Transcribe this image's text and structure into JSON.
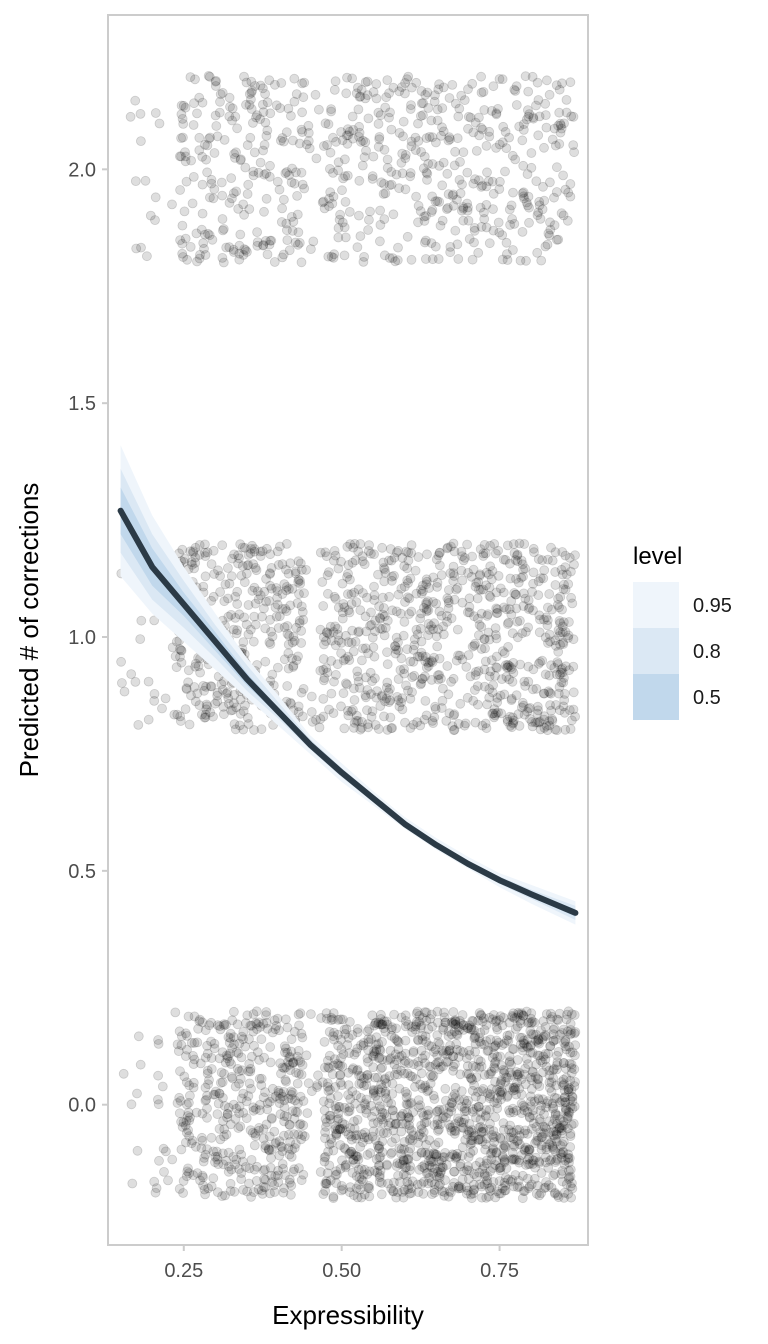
{
  "chart_data": {
    "type": "line",
    "title": "",
    "xlabel": "Expressibility",
    "ylabel": "Predicted # of corrections",
    "xlim": [
      0.13,
      0.89
    ],
    "ylim": [
      -0.3,
      2.33
    ],
    "x_ticks": [
      0.25,
      0.5,
      0.75
    ],
    "x_tick_labels": [
      "0.25",
      "0.50",
      "0.75"
    ],
    "y_ticks": [
      0.0,
      0.5,
      1.0,
      1.5,
      2.0
    ],
    "y_tick_labels": [
      "0.0",
      "0.5",
      "1.0",
      "1.5",
      "2.0"
    ],
    "grid": false,
    "legend": {
      "title": "level",
      "position": "right",
      "entries": [
        {
          "label": "0.95",
          "color": "#eff5fb"
        },
        {
          "label": "0.8",
          "color": "#dbe8f4"
        },
        {
          "label": "0.5",
          "color": "#c1d8ec"
        }
      ]
    },
    "fit_line": {
      "color": "#2b3a46",
      "x": [
        0.15,
        0.2,
        0.25,
        0.3,
        0.35,
        0.4,
        0.45,
        0.5,
        0.55,
        0.6,
        0.65,
        0.7,
        0.75,
        0.8,
        0.87
      ],
      "y": [
        1.27,
        1.15,
        1.07,
        0.99,
        0.91,
        0.84,
        0.77,
        0.71,
        0.655,
        0.6,
        0.555,
        0.515,
        0.48,
        0.45,
        0.41
      ]
    },
    "intervals": [
      {
        "level": "0.95",
        "color": "#eff5fb",
        "lower": [
          1.13,
          1.05,
          0.99,
          0.93,
          0.87,
          0.81,
          0.75,
          0.69,
          0.64,
          0.59,
          0.545,
          0.505,
          0.465,
          0.43,
          0.385
        ],
        "upper": [
          1.41,
          1.26,
          1.15,
          1.05,
          0.955,
          0.875,
          0.79,
          0.73,
          0.67,
          0.615,
          0.57,
          0.53,
          0.495,
          0.47,
          0.435
        ]
      },
      {
        "level": "0.8",
        "color": "#dbe8f4",
        "lower": [
          1.18,
          1.08,
          1.02,
          0.955,
          0.885,
          0.825,
          0.76,
          0.7,
          0.647,
          0.595,
          0.55,
          0.51,
          0.472,
          0.44,
          0.395
        ],
        "upper": [
          1.36,
          1.22,
          1.12,
          1.025,
          0.94,
          0.86,
          0.782,
          0.72,
          0.663,
          0.608,
          0.562,
          0.522,
          0.488,
          0.46,
          0.425
        ]
      },
      {
        "level": "0.5",
        "color": "#c1d8ec",
        "lower": [
          1.22,
          1.11,
          1.045,
          0.97,
          0.897,
          0.832,
          0.765,
          0.705,
          0.651,
          0.597,
          0.552,
          0.512,
          0.476,
          0.445,
          0.402
        ],
        "upper": [
          1.32,
          1.19,
          1.095,
          1.01,
          0.923,
          0.848,
          0.775,
          0.715,
          0.659,
          0.603,
          0.558,
          0.518,
          0.484,
          0.455,
          0.418
        ]
      }
    ],
    "scatter": {
      "color": "#000000",
      "opacity": 0.13,
      "x_range": [
        0.15,
        0.87
      ],
      "jitter_height": 0.2,
      "clusters": [
        {
          "y": 2,
          "count": 800
        },
        {
          "y": 1,
          "count": 1300
        },
        {
          "y": 0,
          "count": 2000
        }
      ]
    }
  }
}
